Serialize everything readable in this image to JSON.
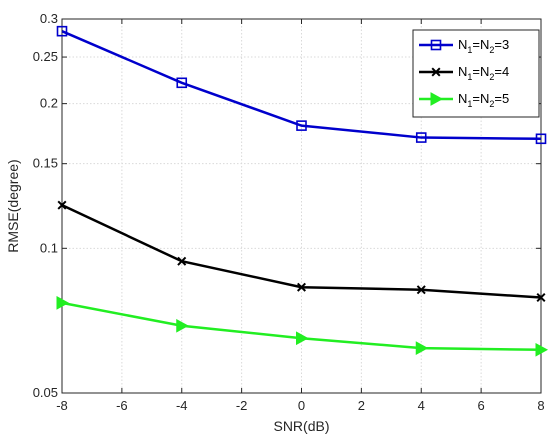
{
  "chart_data": {
    "type": "line",
    "xlabel": "SNR(dB)",
    "ylabel": "RMSE(degree)",
    "x": [
      -8,
      -4,
      0,
      4,
      8
    ],
    "xlim": [
      -8,
      8
    ],
    "ylim": [
      0.05,
      0.3
    ],
    "yscale": "log",
    "xticks": [
      -8,
      -6,
      -4,
      -2,
      0,
      2,
      4,
      6,
      8
    ],
    "xtick_labels": [
      "-8",
      "-6",
      "-4",
      "-2",
      "0",
      "2",
      "4",
      "6",
      "8"
    ],
    "yticks": [
      0.05,
      0.1,
      0.15,
      0.2,
      0.25,
      0.3
    ],
    "ytick_labels": [
      "0.05",
      "0.1",
      "0.15",
      "0.2",
      "0.25",
      "0.3"
    ],
    "grid": true,
    "legend_position": "top-right",
    "series": [
      {
        "legend": [
          "N",
          "1",
          "=N",
          "2",
          "=3"
        ],
        "color": "#0000cc",
        "marker": "square",
        "values": [
          0.283,
          0.221,
          0.18,
          0.17,
          0.169
        ]
      },
      {
        "legend": [
          "N",
          "1",
          "=N",
          "2",
          "=4"
        ],
        "color": "#000000",
        "marker": "x",
        "values": [
          0.123,
          0.094,
          0.083,
          0.082,
          0.079
        ]
      },
      {
        "legend": [
          "N",
          "1",
          "=N",
          "2",
          "=5"
        ],
        "color": "#22ee22",
        "marker": "triangle-right",
        "values": [
          0.077,
          0.069,
          0.065,
          0.062,
          0.0615
        ]
      }
    ]
  }
}
